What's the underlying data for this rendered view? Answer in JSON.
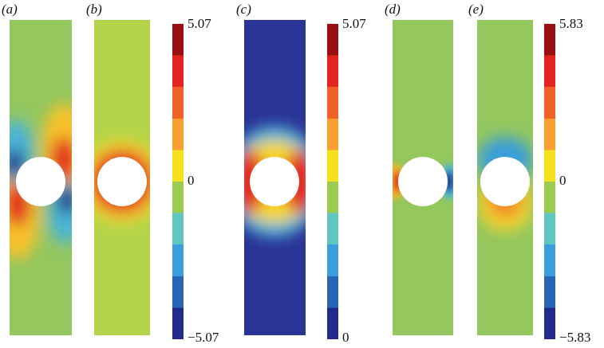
{
  "panels": [
    {
      "label": "(a)"
    },
    {
      "label": "(b)"
    },
    {
      "label": "(c)"
    },
    {
      "label": "(d)"
    },
    {
      "label": "(e)"
    }
  ],
  "colorbars": [
    {
      "ticks": [
        "5.07",
        "0",
        "−5.07"
      ]
    },
    {
      "ticks": [
        "5.07",
        "0"
      ]
    },
    {
      "ticks": [
        "5.83",
        "0",
        "−5.83"
      ]
    }
  ]
}
